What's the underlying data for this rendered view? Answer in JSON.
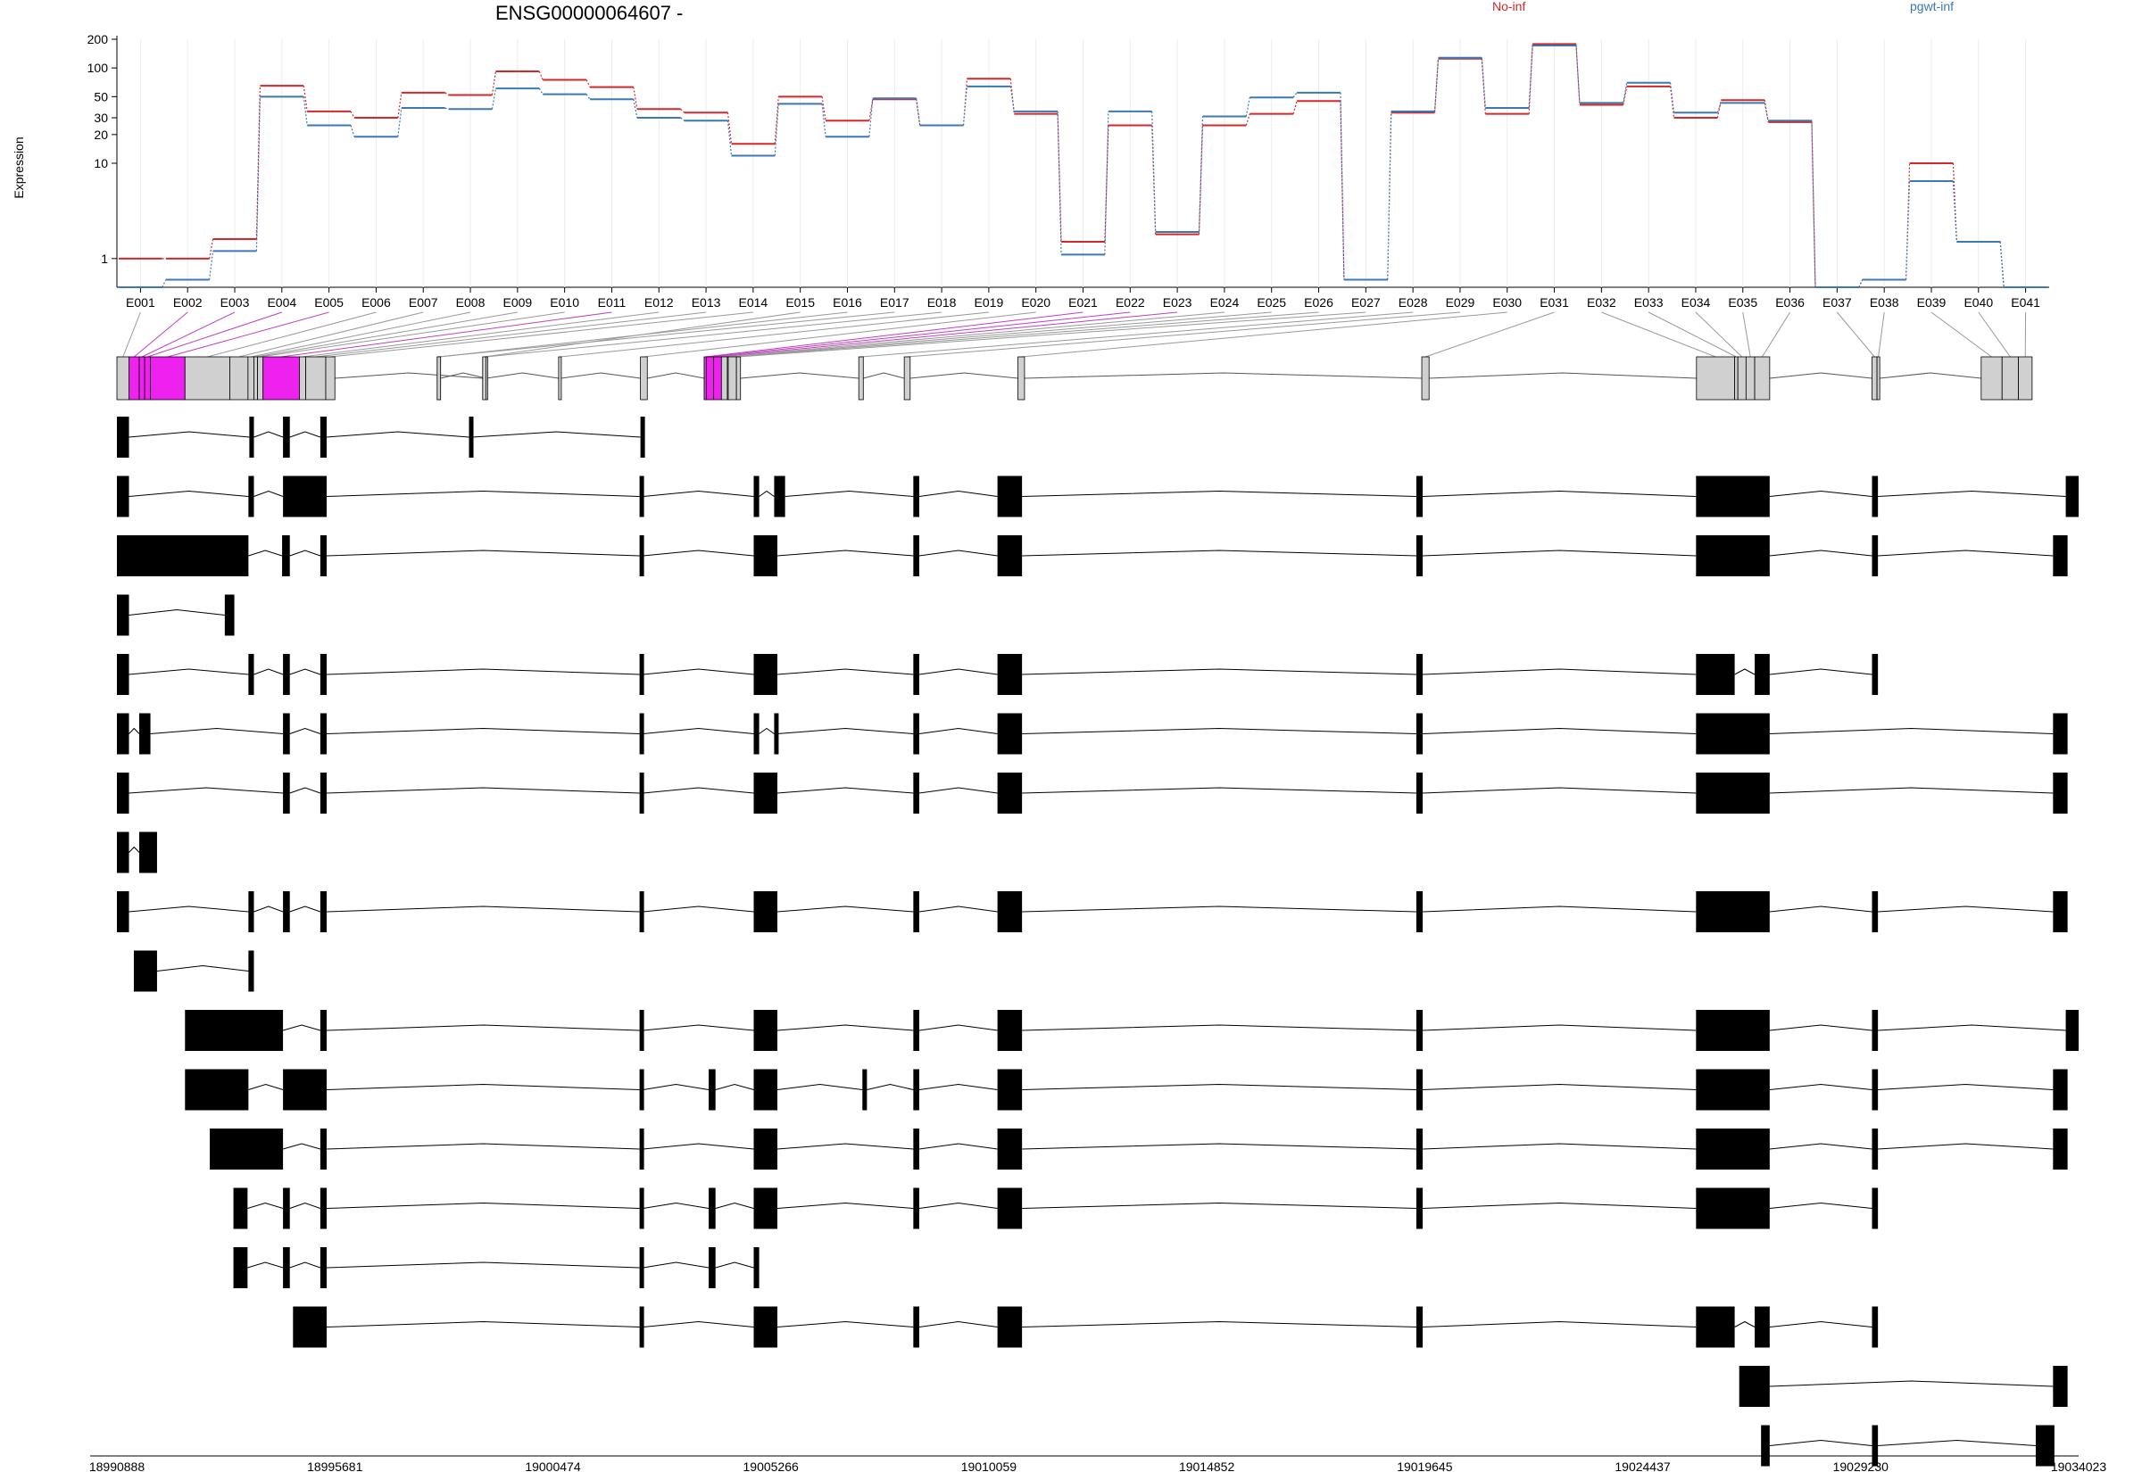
{
  "chart_data": {
    "type": "line",
    "title": "ENSG00000064607 -",
    "ylabel": "Expression",
    "yscale": "log",
    "ylim": [
      0.5,
      200
    ],
    "yticks": [
      1,
      10,
      20,
      30,
      50,
      100,
      200
    ],
    "legend": [
      "No-inf",
      "pgwt-inf"
    ],
    "colors": {
      "No-inf": "#d62728",
      "pgwt-inf": "#3b78b5"
    },
    "categories": [
      "E001",
      "E002",
      "E003",
      "E004",
      "E005",
      "E006",
      "E007",
      "E008",
      "E009",
      "E010",
      "E011",
      "E012",
      "E013",
      "E014",
      "E015",
      "E016",
      "E017",
      "E018",
      "E019",
      "E020",
      "E021",
      "E022",
      "E023",
      "E024",
      "E025",
      "E026",
      "E027",
      "E028",
      "E029",
      "E030",
      "E031",
      "E032",
      "E033",
      "E034",
      "E035",
      "E036",
      "E037",
      "E038",
      "E039",
      "E040",
      "E041"
    ],
    "series": [
      {
        "name": "No-inf",
        "values": [
          1.0,
          1.0,
          1.6,
          65,
          35,
          30,
          55,
          52,
          92,
          75,
          63,
          37,
          34,
          16,
          50,
          28,
          47,
          25,
          77,
          33,
          1.5,
          25,
          1.8,
          25,
          33,
          45,
          0.6,
          34,
          125,
          33,
          178,
          41,
          64,
          30,
          46,
          27,
          0.5,
          0.6,
          10,
          1.5,
          0.5
        ]
      },
      {
        "name": "pgwt-inf",
        "values": [
          0.5,
          0.6,
          1.2,
          50,
          25,
          19,
          38,
          37,
          61,
          53,
          47,
          30,
          28,
          12,
          42,
          19,
          48,
          25,
          64,
          35,
          1.1,
          35,
          1.9,
          31,
          49,
          55,
          0.6,
          35,
          128,
          38,
          172,
          43,
          70,
          34,
          43,
          28,
          0.5,
          0.6,
          6.5,
          1.5,
          0.5
        ]
      }
    ],
    "genome_axis": {
      "ticks": [
        "18990888",
        "18995681",
        "19000474",
        "19005266",
        "19010059",
        "19014852",
        "19019645",
        "19024437",
        "19029230",
        "19034023"
      ]
    },
    "gene_model": {
      "exon_spans_bp": [
        [
          18990888,
          18991153
        ],
        [
          18991153,
          18991379
        ],
        [
          18991379,
          18991499
        ],
        [
          18991499,
          18991625
        ],
        [
          18991625,
          18992385
        ],
        [
          18992385,
          18993370
        ],
        [
          18993370,
          18993770
        ],
        [
          18993770,
          18993900
        ],
        [
          18993900,
          18993980
        ],
        [
          18993980,
          18994100
        ],
        [
          18994100,
          18994900
        ],
        [
          18994900,
          18995040
        ],
        [
          18995040,
          18995480
        ],
        [
          18995480,
          18995681
        ],
        [
          18998930,
          18999005
        ],
        [
          18997930,
          18998005
        ],
        [
          18997930,
          18998005
        ],
        [
          18999001,
          18999010
        ],
        [
          19000600,
          19000660
        ],
        [
          19002400,
          19002550
        ],
        [
          19003800,
          19003850
        ],
        [
          19003850,
          19004010
        ],
        [
          19004010,
          19004180
        ],
        [
          19004180,
          19004310
        ],
        [
          19004310,
          19004330
        ],
        [
          19004330,
          19004510
        ],
        [
          19004510,
          19004600
        ],
        [
          19007200,
          19007300
        ],
        [
          19008200,
          19008330
        ],
        [
          19010700,
          19010845
        ],
        [
          19019580,
          19019740
        ],
        [
          19025620,
          19026460
        ],
        [
          19026460,
          19026530
        ],
        [
          19026530,
          19026710
        ],
        [
          19026710,
          19026900
        ],
        [
          19026900,
          19027230
        ],
        [
          19029480,
          19029590
        ],
        [
          19029590,
          19029650
        ],
        [
          19031880,
          19032340
        ],
        [
          19032340,
          19032700
        ],
        [
          19032700,
          19033000
        ]
      ],
      "highlighted_exons": [
        "E002",
        "E003",
        "E004",
        "E005",
        "E011",
        "E021",
        "E022",
        "E023"
      ],
      "transcripts": [
        [
          [
            18990888,
            18991153
          ],
          [
            18993800,
            18993900
          ],
          [
            18994540,
            18994690
          ],
          [
            18995360,
            18995500
          ],
          [
            18998630,
            18998700
          ],
          [
            19002400,
            19002450
          ]
        ],
        [
          [
            18990888,
            18991153
          ],
          [
            18993780,
            18993900
          ],
          [
            18994540,
            18995500
          ],
          [
            19002380,
            19002460
          ],
          [
            19004890,
            19005010
          ],
          [
            19005340,
            19005580
          ],
          [
            19008400,
            19008530
          ],
          [
            19010250,
            19010790
          ],
          [
            19019460,
            19019600
          ],
          [
            19025610,
            19027230
          ],
          [
            19029480,
            19029610
          ],
          [
            19033740,
            19034023
          ]
        ],
        [
          [
            18990888,
            18993780
          ],
          [
            18994520,
            18994690
          ],
          [
            18995360,
            18995500
          ],
          [
            19002380,
            19002460
          ],
          [
            19004890,
            19005410
          ],
          [
            19008400,
            19008530
          ],
          [
            19010250,
            19010790
          ],
          [
            19019460,
            19019600
          ],
          [
            19025610,
            19027230
          ],
          [
            19029480,
            19029610
          ],
          [
            19033460,
            19033780
          ]
        ],
        [
          [
            18990888,
            18991153
          ],
          [
            18993260,
            18993470
          ]
        ],
        [
          [
            18990888,
            18991153
          ],
          [
            18993780,
            18993900
          ],
          [
            18994540,
            18994690
          ],
          [
            18995360,
            18995500
          ],
          [
            19002380,
            19002460
          ],
          [
            19004890,
            19005410
          ],
          [
            19008400,
            19008530
          ],
          [
            19010250,
            19010790
          ],
          [
            19019460,
            19019600
          ],
          [
            19025610,
            19026460
          ],
          [
            19026900,
            19027230
          ],
          [
            19029480,
            19029610
          ]
        ],
        [
          [
            18990888,
            18991153
          ],
          [
            18991379,
            18991625
          ],
          [
            18994540,
            18994690
          ],
          [
            18995360,
            18995500
          ],
          [
            19002380,
            19002460
          ],
          [
            19004890,
            19005010
          ],
          [
            19005340,
            19005410
          ],
          [
            19008400,
            19008530
          ],
          [
            19010250,
            19010790
          ],
          [
            19019460,
            19019600
          ],
          [
            19025610,
            19027230
          ],
          [
            19033460,
            19033780
          ]
        ],
        [
          [
            18990888,
            18991153
          ],
          [
            18994540,
            18994690
          ],
          [
            18995360,
            18995500
          ],
          [
            19002380,
            19002460
          ],
          [
            19004890,
            19005410
          ],
          [
            19008400,
            19008530
          ],
          [
            19010250,
            19010790
          ],
          [
            19019460,
            19019600
          ],
          [
            19025610,
            19027230
          ],
          [
            19033460,
            19033780
          ]
        ],
        [
          [
            18990888,
            18991153
          ],
          [
            18991379,
            18991770
          ]
        ],
        [
          [
            18990888,
            18991153
          ],
          [
            18993780,
            18993900
          ],
          [
            18994540,
            18994690
          ],
          [
            18995360,
            18995500
          ],
          [
            19002380,
            19002460
          ],
          [
            19004890,
            19005410
          ],
          [
            19008400,
            19008530
          ],
          [
            19010250,
            19010790
          ],
          [
            19019460,
            19019600
          ],
          [
            19025610,
            19027230
          ],
          [
            19029480,
            19029610
          ],
          [
            19033460,
            19033780
          ]
        ],
        [
          [
            18991260,
            18991770
          ],
          [
            18993780,
            18993900
          ]
        ],
        [
          [
            18992385,
            18994540
          ],
          [
            18995360,
            18995500
          ],
          [
            19002380,
            19002460
          ],
          [
            19004890,
            19005410
          ],
          [
            19008400,
            19008530
          ],
          [
            19010250,
            19010790
          ],
          [
            19019460,
            19019600
          ],
          [
            19025610,
            19027230
          ],
          [
            19029480,
            19029610
          ],
          [
            19033740,
            19034023
          ]
        ],
        [
          [
            18992385,
            18993780
          ],
          [
            18994540,
            18995500
          ],
          [
            19002380,
            19002460
          ],
          [
            19003900,
            19004050
          ],
          [
            19004890,
            19005410
          ],
          [
            19007280,
            19007380
          ],
          [
            19008400,
            19008530
          ],
          [
            19010250,
            19010790
          ],
          [
            19019460,
            19019600
          ],
          [
            19025610,
            19027230
          ],
          [
            19029480,
            19029610
          ],
          [
            19033460,
            19033780
          ]
        ],
        [
          [
            18992930,
            18994540
          ],
          [
            18995360,
            18995500
          ],
          [
            19002380,
            19002460
          ],
          [
            19004890,
            19005410
          ],
          [
            19008400,
            19008530
          ],
          [
            19010250,
            19010790
          ],
          [
            19019460,
            19019600
          ],
          [
            19025610,
            19027230
          ],
          [
            19029480,
            19029610
          ],
          [
            19033460,
            19033780
          ]
        ],
        [
          [
            18993450,
            18993760
          ],
          [
            18994540,
            18994690
          ],
          [
            18995360,
            18995500
          ],
          [
            19002380,
            19002460
          ],
          [
            19003900,
            19004050
          ],
          [
            19004890,
            19005410
          ],
          [
            19008400,
            19008530
          ],
          [
            19010250,
            19010790
          ],
          [
            19019460,
            19019600
          ],
          [
            19025610,
            19027230
          ],
          [
            19029480,
            19029610
          ]
        ],
        [
          [
            18993450,
            18993760
          ],
          [
            18994540,
            18994690
          ],
          [
            18995360,
            18995500
          ],
          [
            19002380,
            19002460
          ],
          [
            19003900,
            19004050
          ],
          [
            19004890,
            19005010
          ]
        ],
        [
          [
            18994760,
            18995500
          ],
          [
            19002380,
            19002460
          ],
          [
            19004890,
            19005410
          ],
          [
            19008400,
            19008530
          ],
          [
            19010250,
            19010790
          ],
          [
            19019460,
            19019600
          ],
          [
            19025610,
            19026460
          ],
          [
            19026900,
            19027230
          ],
          [
            19029480,
            19029610
          ]
        ],
        [
          [
            19026560,
            19027230
          ],
          [
            19033460,
            19033780
          ]
        ],
        [
          [
            19027040,
            19027230
          ],
          [
            19029480,
            19029610
          ],
          [
            19033080,
            19033490
          ]
        ]
      ]
    }
  }
}
